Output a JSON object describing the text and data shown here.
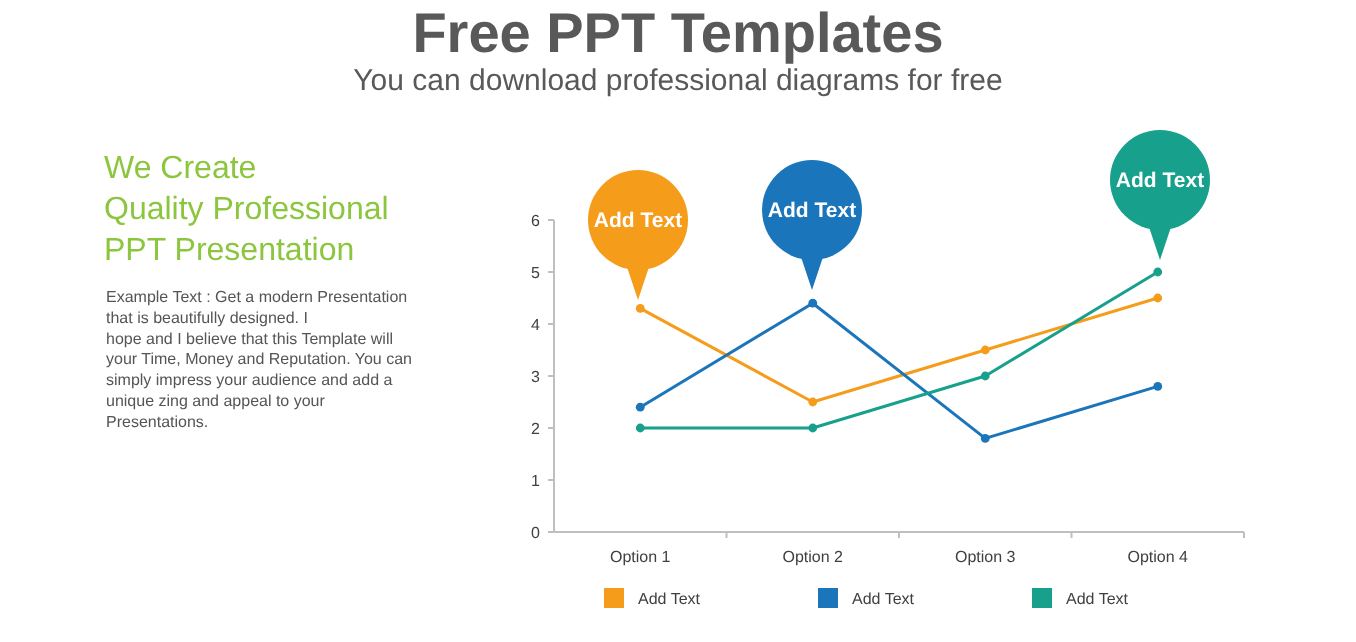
{
  "chart_data": {
    "type": "line",
    "title": "Free PPT Templates",
    "subtitle": "You can download professional diagrams for free",
    "categories": [
      "Option 1",
      "Option 2",
      "Option 3",
      "Option 4"
    ],
    "series": [
      {
        "name": "Add Text",
        "color": "#f59c1a",
        "values": [
          4.3,
          2.5,
          3.5,
          4.5
        ]
      },
      {
        "name": "Add Text",
        "color": "#1a75bb",
        "values": [
          2.4,
          4.4,
          1.8,
          2.8
        ]
      },
      {
        "name": "Add Text",
        "color": "#17a08c",
        "values": [
          2.0,
          2.0,
          3.0,
          5.0
        ]
      }
    ],
    "ylim": [
      0,
      6
    ],
    "yticks": [
      0,
      1,
      2,
      3,
      4,
      5,
      6
    ],
    "grid": false,
    "legend": "bottom",
    "marker": "circle",
    "line_style": "solid",
    "annotations": [
      "Add Text",
      "Add Text",
      "Add Text",
      "We Create\nQuality Professional\nPPT Presentation",
      "Example Text : Get a modern Presentation\nthat is beautifully designed. I\nhope and I believe that this Template will\nyour Time, Money and Reputation. You can\nsimply impress your audience and add a\nunique zing and appeal to your\nPresentations."
    ]
  }
}
